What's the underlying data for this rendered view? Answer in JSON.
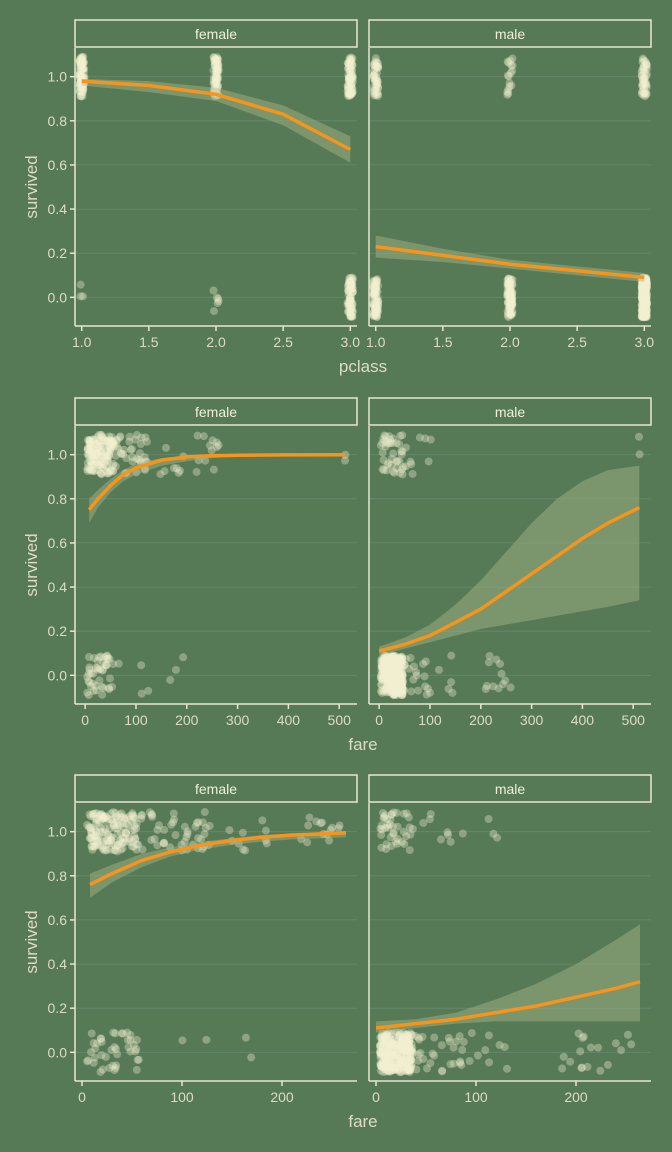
{
  "colors": {
    "background": "#567a56",
    "grid": "#63876a",
    "axis": "#e8e6d0",
    "point": "#f4f2d0",
    "fit_line": "#f6941c",
    "ribbon": "#a8b68a"
  },
  "chart_data": [
    {
      "type": "scatter",
      "facets": [
        "female",
        "male"
      ],
      "xlabel": "pclass",
      "ylabel": "survived",
      "xlim": [
        0.95,
        3.05
      ],
      "ylim": [
        -0.13,
        1.13
      ],
      "x_ticks": [
        1.0,
        1.5,
        2.0,
        2.5,
        3.0
      ],
      "x_tick_labels": [
        "1.0",
        "1.5",
        "2.0",
        "2.5",
        "3.0"
      ],
      "y_ticks": [
        0.0,
        0.2,
        0.4,
        0.6,
        0.8,
        1.0
      ],
      "y_tick_labels": [
        "0.0",
        "0.2",
        "0.4",
        "0.6",
        "0.8",
        "1.0"
      ],
      "fit": {
        "female": {
          "x": [
            1.0,
            1.5,
            2.0,
            2.5,
            3.0
          ],
          "y": [
            0.98,
            0.96,
            0.92,
            0.83,
            0.67
          ],
          "lo": [
            0.96,
            0.93,
            0.89,
            0.78,
            0.61
          ],
          "hi": [
            0.99,
            0.98,
            0.95,
            0.87,
            0.73
          ]
        },
        "male": {
          "x": [
            1.0,
            1.5,
            2.0,
            2.5,
            3.0
          ],
          "y": [
            0.23,
            0.19,
            0.15,
            0.12,
            0.09
          ],
          "lo": [
            0.18,
            0.16,
            0.13,
            0.1,
            0.07
          ],
          "hi": [
            0.28,
            0.22,
            0.17,
            0.14,
            0.11
          ]
        }
      },
      "points": {
        "female": {
          "groups": [
            {
              "x": 1.0,
              "xspread": 0.02,
              "n1": 91,
              "n0": 3
            },
            {
              "x": 2.0,
              "xspread": 0.02,
              "n1": 70,
              "n0": 6
            },
            {
              "x": 3.0,
              "xspread": 0.02,
              "n1": 72,
              "n0": 72
            }
          ]
        },
        "male": {
          "groups": [
            {
              "x": 1.0,
              "xspread": 0.02,
              "n1": 45,
              "n0": 77
            },
            {
              "x": 2.0,
              "xspread": 0.02,
              "n1": 17,
              "n0": 91
            },
            {
              "x": 3.0,
              "xspread": 0.02,
              "n1": 47,
              "n0": 300
            }
          ]
        }
      }
    },
    {
      "type": "scatter",
      "facets": [
        "female",
        "male"
      ],
      "xlabel": "fare",
      "ylabel": "survived",
      "xlim": [
        -20,
        535
      ],
      "ylim": [
        -0.13,
        1.13
      ],
      "x_ticks": [
        0,
        100,
        200,
        300,
        400,
        500
      ],
      "x_tick_labels": [
        "0",
        "100",
        "200",
        "300",
        "400",
        "500"
      ],
      "y_ticks": [
        0.0,
        0.2,
        0.4,
        0.6,
        0.8,
        1.0
      ],
      "y_tick_labels": [
        "0.0",
        "0.2",
        "0.4",
        "0.6",
        "0.8",
        "1.0"
      ],
      "fit": {
        "female": {
          "x": [
            8,
            25,
            50,
            75,
            100,
            150,
            200,
            250,
            300,
            400,
            512
          ],
          "y": [
            0.75,
            0.8,
            0.86,
            0.91,
            0.94,
            0.975,
            0.99,
            0.995,
            0.997,
            0.999,
            1.0
          ],
          "lo": [
            0.69,
            0.76,
            0.83,
            0.88,
            0.91,
            0.95,
            0.97,
            0.985,
            0.99,
            0.996,
            0.998
          ],
          "hi": [
            0.8,
            0.84,
            0.89,
            0.93,
            0.96,
            0.985,
            0.995,
            0.998,
            0.999,
            1.0,
            1.0
          ]
        },
        "male": {
          "x": [
            0,
            50,
            100,
            150,
            200,
            250,
            300,
            350,
            400,
            450,
            512
          ],
          "y": [
            0.11,
            0.14,
            0.18,
            0.24,
            0.3,
            0.38,
            0.46,
            0.54,
            0.62,
            0.69,
            0.76
          ],
          "lo": [
            0.09,
            0.12,
            0.15,
            0.18,
            0.21,
            0.23,
            0.25,
            0.27,
            0.29,
            0.31,
            0.34
          ],
          "hi": [
            0.13,
            0.17,
            0.23,
            0.32,
            0.43,
            0.56,
            0.69,
            0.8,
            0.88,
            0.93,
            0.95
          ]
        }
      },
      "points": {
        "female": {
          "groups": [
            {
              "x": 30,
              "xspread": 26,
              "n1": 150,
              "n0": 45
            },
            {
              "x": 90,
              "xspread": 35,
              "n1": 40,
              "n0": 4
            },
            {
              "x": 170,
              "xspread": 25,
              "n1": 8,
              "n0": 3
            },
            {
              "x": 240,
              "xspread": 25,
              "n1": 12,
              "n0": 0
            },
            {
              "x": 512,
              "xspread": 1,
              "n1": 2,
              "n0": 0
            }
          ]
        },
        "male": {
          "groups": [
            {
              "x": 25,
              "xspread": 22,
              "n1": 40,
              "n0": 300
            },
            {
              "x": 65,
              "xspread": 30,
              "n1": 8,
              "n0": 25
            },
            {
              "x": 120,
              "xspread": 30,
              "n1": 2,
              "n0": 8
            },
            {
              "x": 230,
              "xspread": 30,
              "n1": 0,
              "n0": 12
            },
            {
              "x": 512,
              "xspread": 1,
              "n1": 2,
              "n0": 0
            }
          ]
        }
      }
    },
    {
      "type": "scatter",
      "facets": [
        "female",
        "male"
      ],
      "xlabel": "fare",
      "ylabel": "survived",
      "xlim": [
        -7,
        275
      ],
      "ylim": [
        -0.13,
        1.13
      ],
      "x_ticks": [
        0,
        100,
        200
      ],
      "x_tick_labels": [
        "0",
        "100",
        "200"
      ],
      "y_ticks": [
        0.0,
        0.2,
        0.4,
        0.6,
        0.8,
        1.0
      ],
      "y_tick_labels": [
        "0.0",
        "0.2",
        "0.4",
        "0.6",
        "0.8",
        "1.0"
      ],
      "fit": {
        "female": {
          "x": [
            8,
            30,
            60,
            90,
            120,
            150,
            180,
            210,
            240,
            264
          ],
          "y": [
            0.76,
            0.81,
            0.87,
            0.91,
            0.94,
            0.96,
            0.975,
            0.985,
            0.99,
            0.995
          ],
          "lo": [
            0.7,
            0.77,
            0.84,
            0.89,
            0.92,
            0.94,
            0.955,
            0.965,
            0.97,
            0.975
          ],
          "hi": [
            0.81,
            0.85,
            0.9,
            0.93,
            0.955,
            0.97,
            0.985,
            0.99,
            0.995,
            0.998
          ]
        },
        "male": {
          "x": [
            0,
            40,
            80,
            120,
            160,
            200,
            240,
            264
          ],
          "y": [
            0.11,
            0.13,
            0.15,
            0.18,
            0.21,
            0.25,
            0.29,
            0.32
          ],
          "lo": [
            0.09,
            0.11,
            0.13,
            0.14,
            0.14,
            0.14,
            0.14,
            0.14
          ],
          "hi": [
            0.14,
            0.15,
            0.18,
            0.24,
            0.31,
            0.4,
            0.51,
            0.58
          ]
        }
      },
      "points": {
        "female": {
          "groups": [
            {
              "x": 30,
              "xspread": 25,
              "n1": 150,
              "n0": 40
            },
            {
              "x": 90,
              "xspread": 40,
              "n1": 50,
              "n0": 4
            },
            {
              "x": 160,
              "xspread": 25,
              "n1": 10,
              "n0": 2
            },
            {
              "x": 240,
              "xspread": 22,
              "n1": 14,
              "n0": 0
            }
          ]
        },
        "male": {
          "groups": [
            {
              "x": 20,
              "xspread": 16,
              "n1": 40,
              "n0": 300
            },
            {
              "x": 60,
              "xspread": 28,
              "n1": 8,
              "n0": 30
            },
            {
              "x": 110,
              "xspread": 28,
              "n1": 4,
              "n0": 12
            },
            {
              "x": 220,
              "xspread": 40,
              "n1": 0,
              "n0": 18
            }
          ]
        }
      }
    }
  ]
}
